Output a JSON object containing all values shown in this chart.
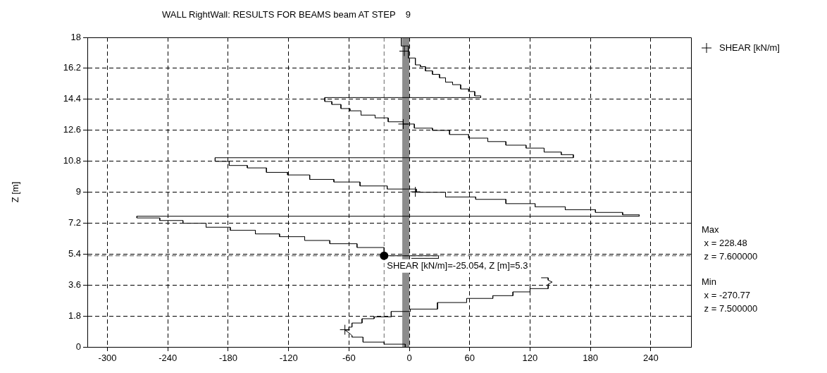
{
  "chart_data": {
    "type": "line",
    "title": "WALL RightWall: RESULTS FOR BEAMS beam AT STEP    9",
    "ylabel": "Z [m]",
    "xlim": [
      -320,
      280
    ],
    "xticks": [
      -300,
      -240,
      -180,
      -120,
      -60,
      0,
      60,
      120,
      180,
      240
    ],
    "ylim": [
      0,
      18
    ],
    "yticks": [
      0,
      1.8,
      3.6,
      5.4,
      7.2,
      9,
      10.8,
      12.6,
      14.4,
      16.2,
      18
    ],
    "grid": true,
    "legend": "top right",
    "series": [
      {
        "color": "#000000",
        "marker": "none",
        "x": [
          -8,
          -8,
          -1,
          -1,
          6,
          6,
          11,
          11,
          16,
          16,
          23,
          23,
          30,
          30,
          36,
          36,
          43,
          43,
          51,
          51,
          59,
          59,
          65,
          65,
          71,
          71,
          -84,
          -84,
          -77,
          -77,
          -68,
          -68,
          -59,
          -59,
          -48,
          -48,
          -34,
          -34,
          -21,
          -21,
          -6,
          -6,
          5,
          5,
          23,
          23,
          40,
          40,
          59,
          59,
          78,
          78,
          96,
          96,
          116,
          116,
          134,
          134,
          151,
          151,
          163,
          163,
          -193,
          -193,
          -179,
          -179,
          -161,
          -161,
          -142,
          -142,
          -121,
          -121,
          -99,
          -99,
          -75,
          -75,
          -49,
          -49,
          -22,
          -22,
          7,
          7,
          36,
          36,
          66,
          66,
          96,
          96,
          125,
          125,
          155,
          155,
          185,
          185,
          212,
          212,
          228.48,
          228.48,
          -270.77,
          -270.77,
          -248,
          -248,
          -225,
          -225,
          -202,
          -202,
          -178,
          -178,
          -153,
          -153,
          -129,
          -129,
          -104,
          -104,
          -79,
          -79,
          -52,
          -52,
          -25.054,
          -25.054,
          29,
          29,
          2,
          null,
          131,
          138,
          138,
          142,
          138,
          138,
          120,
          120,
          103,
          103,
          83,
          83,
          57,
          57,
          28,
          28,
          1,
          1,
          -18,
          -18,
          -35,
          -35,
          -47,
          -47,
          -57,
          -57,
          -60,
          -60,
          -64,
          -60,
          -57,
          -57,
          -46,
          -46,
          -25,
          -25,
          -4,
          -4
        ],
        "values": [
          18,
          17.5,
          17.5,
          16.8,
          16.8,
          16.4,
          16.4,
          16.3,
          16.3,
          16.05,
          16.05,
          15.85,
          15.85,
          15.65,
          15.65,
          15.4,
          15.4,
          15.25,
          15.25,
          15,
          15,
          14.85,
          14.85,
          14.6,
          14.6,
          14.5,
          14.5,
          14.27,
          14.27,
          14.1,
          14.1,
          13.86,
          13.86,
          13.73,
          13.73,
          13.48,
          13.48,
          13.32,
          13.32,
          13.09,
          13.09,
          12.96,
          12.96,
          12.72,
          12.72,
          12.59,
          12.59,
          12.35,
          12.35,
          12.14,
          12.14,
          11.94,
          11.94,
          11.73,
          11.73,
          11.56,
          11.56,
          11.33,
          11.33,
          11.18,
          11.18,
          11,
          11,
          10.79,
          10.79,
          10.55,
          10.55,
          10.41,
          10.41,
          10.15,
          10.15,
          10,
          10,
          9.74,
          9.74,
          9.59,
          9.59,
          9.36,
          9.36,
          9.18,
          9.18,
          8.99,
          8.99,
          8.72,
          8.72,
          8.58,
          8.58,
          8.33,
          8.33,
          8.15,
          8.15,
          7.98,
          7.98,
          7.82,
          7.82,
          7.68,
          7.68,
          7.6,
          7.6,
          7.5,
          7.5,
          7.35,
          7.35,
          7.19,
          7.19,
          6.96,
          6.96,
          6.78,
          6.78,
          6.57,
          6.57,
          6.41,
          6.41,
          6.19,
          6.19,
          6,
          6,
          5.78,
          5.78,
          5.3,
          5.3,
          5.15,
          5.15,
          null,
          4.02,
          4.02,
          3.88,
          3.77,
          3.65,
          3.39,
          3.39,
          3.2,
          3.2,
          2.98,
          2.98,
          2.82,
          2.82,
          2.58,
          2.58,
          2.2,
          2.2,
          2.06,
          2.06,
          1.75,
          1.75,
          1.64,
          1.64,
          1.39,
          1.39,
          1.15,
          1.15,
          0.98,
          0.98,
          0.82,
          0.66,
          0.57,
          0.57,
          0.28,
          0.28,
          0.16,
          0.16,
          0
        ]
      },
      {
        "type": "scatter",
        "name": "SHEAR [kN/m]",
        "color": "#000000",
        "marker": "cross",
        "x": [
          -5,
          -6,
          6,
          -64
        ],
        "values": [
          17.2,
          12.96,
          9.02,
          1
        ]
      }
    ],
    "ref_lines": [
      {
        "axis": "x",
        "value": -25.054,
        "color": "#666666",
        "line_style": "dashed"
      },
      {
        "axis": "y",
        "value": 5.3,
        "color": "#444444",
        "line_style": "dashed"
      }
    ],
    "bands": [
      {
        "axis": "x",
        "from": -7,
        "to": 0,
        "color": "#8c8c8c"
      }
    ],
    "annotations": [
      {
        "text": "SHEAR [kN/m]=-25.054, Z [m]=5.3",
        "x": -25.054,
        "y": 5.3
      },
      "Max\n x = 228.48\n z = 7.600000",
      "Min\n x = -270.77\n z = 7.500000"
    ]
  }
}
